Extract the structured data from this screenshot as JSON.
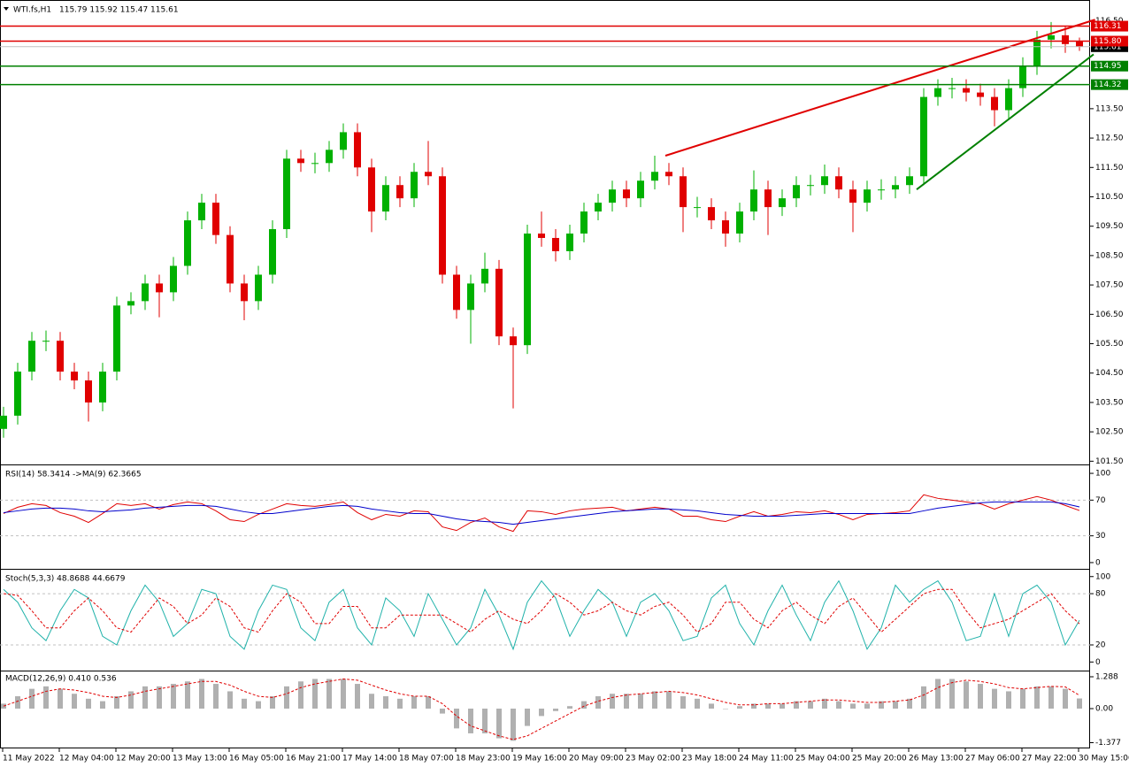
{
  "chart_data": [
    {
      "type": "candlestick",
      "title": "WTI.fs,H1",
      "subtitle": "115.79 115.92 115.47 115.61",
      "categories": [
        "11 May 2022",
        null,
        null,
        null,
        "12 May 04:00",
        null,
        null,
        null,
        "12 May 20:00",
        null,
        null,
        null,
        "13 May 13:00",
        null,
        null,
        null,
        "16 May 05:00",
        null,
        null,
        null,
        "16 May 21:00",
        null,
        null,
        null,
        "17 May 14:00",
        null,
        null,
        null,
        "18 May 07:00",
        null,
        null,
        null,
        "18 May 23:00",
        null,
        null,
        null,
        "19 May 16:00",
        null,
        null,
        null,
        "20 May 09:00",
        null,
        null,
        null,
        "23 May 02:00",
        null,
        null,
        null,
        "23 May 18:00",
        null,
        null,
        null,
        "24 May 11:00",
        null,
        null,
        null,
        "25 May 04:00",
        null,
        null,
        null,
        "25 May 20:00",
        null,
        null,
        null,
        "26 May 13:00",
        null,
        null,
        null,
        "27 May 06:00",
        null,
        null,
        null,
        "27 May 22:00",
        null,
        null,
        null,
        "30 May 15:00"
      ],
      "open": [
        102.6,
        103.05,
        104.55,
        105.6,
        105.6,
        104.55,
        104.25,
        103.5,
        104.55,
        106.8,
        106.95,
        107.55,
        107.25,
        108.15,
        109.7,
        110.3,
        109.2,
        107.55,
        106.95,
        107.85,
        109.4,
        111.8,
        111.65,
        111.65,
        112.1,
        112.7,
        111.5,
        110.0,
        110.9,
        110.45,
        111.35,
        111.2,
        107.85,
        106.65,
        107.55,
        108.05,
        105.75,
        105.45,
        109.25,
        109.1,
        108.65,
        109.25,
        110.0,
        110.3,
        110.75,
        110.45,
        111.05,
        111.35,
        111.2,
        110.15,
        110.15,
        109.7,
        109.25,
        110.0,
        110.75,
        110.15,
        110.45,
        110.9,
        110.9,
        111.2,
        110.75,
        110.3,
        110.75,
        110.75,
        110.9,
        111.2,
        113.9,
        114.2,
        114.2,
        114.05,
        113.9,
        113.45,
        114.2,
        114.95,
        115.85,
        116.0,
        115.79
      ],
      "high": [
        103.35,
        104.85,
        105.9,
        105.95,
        105.9,
        104.85,
        104.55,
        104.85,
        107.1,
        107.25,
        107.85,
        107.85,
        108.45,
        110.0,
        110.6,
        110.6,
        109.5,
        107.85,
        108.15,
        109.7,
        112.1,
        112.1,
        112.0,
        112.4,
        113.0,
        113.0,
        111.8,
        111.2,
        111.2,
        111.65,
        112.4,
        111.5,
        108.15,
        107.85,
        108.6,
        108.35,
        106.05,
        109.55,
        110.0,
        109.4,
        109.55,
        110.3,
        110.6,
        111.05,
        111.05,
        111.35,
        111.9,
        111.65,
        111.5,
        110.5,
        110.45,
        110.0,
        110.3,
        111.4,
        111.05,
        110.75,
        111.2,
        111.25,
        111.6,
        111.5,
        111.05,
        111.05,
        111.1,
        111.2,
        111.5,
        114.2,
        114.5,
        114.55,
        114.5,
        114.35,
        114.2,
        114.5,
        115.25,
        116.15,
        116.45,
        116.3,
        115.92
      ],
      "low": [
        102.3,
        102.75,
        104.25,
        105.25,
        104.25,
        103.95,
        102.85,
        103.2,
        104.25,
        106.5,
        106.65,
        106.4,
        106.95,
        107.85,
        109.4,
        108.9,
        107.25,
        106.3,
        106.65,
        107.55,
        109.1,
        111.35,
        111.3,
        111.35,
        111.8,
        111.2,
        109.3,
        109.7,
        110.15,
        110.15,
        110.9,
        107.55,
        106.35,
        105.5,
        107.25,
        105.45,
        103.3,
        105.15,
        108.8,
        108.3,
        108.35,
        108.95,
        109.7,
        110.0,
        110.15,
        110.15,
        110.75,
        110.9,
        109.3,
        109.8,
        109.4,
        108.8,
        108.95,
        109.7,
        109.2,
        109.85,
        110.15,
        110.55,
        110.6,
        110.45,
        109.3,
        110.0,
        110.4,
        110.45,
        110.6,
        110.9,
        113.6,
        113.85,
        113.75,
        113.6,
        112.9,
        113.15,
        113.9,
        114.65,
        115.55,
        115.4,
        115.47
      ],
      "close": [
        103.05,
        104.55,
        105.6,
        105.6,
        104.55,
        104.25,
        103.5,
        104.55,
        106.8,
        106.95,
        107.55,
        107.25,
        108.15,
        109.7,
        110.3,
        109.2,
        107.55,
        106.95,
        107.85,
        109.4,
        111.8,
        111.65,
        111.65,
        112.1,
        112.7,
        111.5,
        110.0,
        110.9,
        110.45,
        111.35,
        111.2,
        107.85,
        106.65,
        107.55,
        108.05,
        105.75,
        105.45,
        109.25,
        109.1,
        108.65,
        109.25,
        110.0,
        110.3,
        110.75,
        110.45,
        111.05,
        111.35,
        111.2,
        110.15,
        110.15,
        109.7,
        109.25,
        110.0,
        110.75,
        110.15,
        110.45,
        110.9,
        110.9,
        111.2,
        110.75,
        110.3,
        110.75,
        110.75,
        110.9,
        111.2,
        113.9,
        114.2,
        114.2,
        114.05,
        113.9,
        113.45,
        114.2,
        114.95,
        115.85,
        116.0,
        115.7,
        115.61
      ],
      "up_color": "#00b000",
      "down_color": "#e00000",
      "ylim": [
        101.45,
        117.14
      ],
      "yticks": [
        {
          "value": 116.5,
          "label": "116.50"
        },
        {
          "value": 113.5,
          "label": "113.50"
        },
        {
          "value": 112.5,
          "label": "112.50"
        },
        {
          "value": 111.5,
          "label": "111.50"
        },
        {
          "value": 110.5,
          "label": "110.50"
        },
        {
          "value": 109.5,
          "label": "109.50"
        },
        {
          "value": 108.5,
          "label": "108.50"
        },
        {
          "value": 107.5,
          "label": "107.50"
        },
        {
          "value": 106.5,
          "label": "106.50"
        },
        {
          "value": 105.5,
          "label": "105.50"
        },
        {
          "value": 104.5,
          "label": "104.50"
        },
        {
          "value": 103.5,
          "label": "103.50"
        },
        {
          "value": 102.5,
          "label": "102.50"
        },
        {
          "value": 101.5,
          "label": "101.50"
        }
      ],
      "current_price": {
        "value": 115.61,
        "label": "115.61",
        "color": "#000000"
      },
      "levels": [
        {
          "value": 116.31,
          "label": "116.31",
          "color": "#e00000"
        },
        {
          "value": 115.8,
          "label": "115.80",
          "color": "#e00000"
        },
        {
          "value": 114.95,
          "label": "114.95",
          "color": "#008000"
        },
        {
          "value": 114.32,
          "label": "114.32",
          "color": "#008000"
        }
      ],
      "trendlines": [
        {
          "color": "#e00000",
          "x": [
            46.75,
            77.1
          ],
          "y": [
            111.9,
            116.53
          ]
        },
        {
          "color": "#008000",
          "x": [
            64.5,
            77.0
          ],
          "y": [
            110.75,
            115.35
          ]
        }
      ]
    },
    {
      "type": "line",
      "title": "RSI(14) 58.3414 ->MA(9) 62.3665",
      "series": [
        {
          "color": "#e00000",
          "values": [
            55,
            62,
            66,
            64,
            56,
            52,
            45,
            55,
            66,
            64,
            66,
            60,
            65,
            68,
            66,
            58,
            48,
            46,
            54,
            60,
            66,
            64,
            63,
            65,
            68,
            56,
            48,
            54,
            52,
            58,
            57,
            40,
            36,
            45,
            50,
            40,
            35,
            58,
            57,
            54,
            58,
            60,
            61,
            62,
            58,
            60,
            62,
            60,
            52,
            52,
            48,
            46,
            52,
            57,
            52,
            54,
            57,
            56,
            58,
            54,
            48,
            54,
            55,
            56,
            58,
            76,
            72,
            70,
            68,
            66,
            60,
            66,
            70,
            74,
            70,
            64,
            58.3414
          ]
        },
        {
          "color": "#0000cc",
          "values": [
            56,
            58,
            60,
            61,
            61,
            60,
            58,
            57,
            58,
            59,
            61,
            62,
            63,
            64,
            64,
            63,
            60,
            57,
            55,
            55,
            57,
            59,
            61,
            63,
            64,
            63,
            60,
            58,
            56,
            55,
            55,
            52,
            49,
            47,
            46,
            45,
            43,
            45,
            47,
            49,
            51,
            53,
            55,
            57,
            58,
            59,
            60,
            60,
            59,
            58,
            56,
            54,
            53,
            52,
            52,
            52,
            53,
            54,
            55,
            55,
            55,
            55,
            55,
            55,
            55,
            58,
            61,
            63,
            65,
            67,
            68,
            68,
            68,
            68,
            68,
            66,
            62.3665
          ]
        }
      ],
      "ylim": [
        -6,
        107
      ],
      "yticks": [
        0,
        30,
        70,
        100
      ],
      "levels": [
        30,
        70
      ]
    },
    {
      "type": "line",
      "title": "Stoch(5,3,3) 48.8688 44.6679",
      "series": [
        {
          "color": "#20b2aa",
          "values": [
            85,
            70,
            40,
            25,
            60,
            85,
            75,
            30,
            20,
            60,
            90,
            70,
            30,
            45,
            85,
            80,
            30,
            15,
            60,
            90,
            85,
            40,
            25,
            70,
            85,
            40,
            20,
            75,
            60,
            30,
            80,
            50,
            20,
            40,
            85,
            55,
            15,
            70,
            95,
            75,
            30,
            60,
            85,
            70,
            30,
            70,
            80,
            60,
            25,
            30,
            75,
            90,
            45,
            20,
            60,
            90,
            55,
            25,
            70,
            95,
            60,
            15,
            40,
            90,
            70,
            85,
            95,
            70,
            25,
            30,
            80,
            30,
            80,
            90,
            70,
            20,
            48.8688
          ]
        },
        {
          "color": "#e00000",
          "dashed": true,
          "values": [
            80,
            78,
            60,
            40,
            40,
            60,
            75,
            60,
            40,
            35,
            55,
            75,
            65,
            45,
            55,
            75,
            65,
            40,
            35,
            60,
            80,
            70,
            45,
            45,
            65,
            65,
            40,
            40,
            55,
            55,
            55,
            55,
            45,
            35,
            50,
            60,
            50,
            45,
            60,
            80,
            70,
            55,
            60,
            70,
            60,
            55,
            65,
            70,
            55,
            35,
            45,
            70,
            70,
            50,
            40,
            60,
            70,
            55,
            45,
            65,
            75,
            55,
            35,
            50,
            65,
            80,
            85,
            85,
            60,
            40,
            45,
            50,
            60,
            70,
            80,
            60,
            44.6679
          ]
        }
      ],
      "ylim": [
        -9,
        107
      ],
      "yticks": [
        0,
        20,
        80,
        100
      ],
      "levels": [
        20,
        80
      ]
    },
    {
      "type": "bar",
      "title": "MACD(12,26,9) 0.410 0.536",
      "series": [
        {
          "type": "bar",
          "color": "#b0b0b0",
          "values": [
            0.2,
            0.5,
            0.8,
            0.9,
            0.8,
            0.6,
            0.4,
            0.3,
            0.5,
            0.7,
            0.9,
            0.9,
            1.0,
            1.1,
            1.2,
            1.0,
            0.7,
            0.4,
            0.3,
            0.5,
            0.9,
            1.1,
            1.2,
            1.2,
            1.2,
            1.0,
            0.6,
            0.5,
            0.4,
            0.5,
            0.5,
            -0.2,
            -0.8,
            -1.0,
            -1.0,
            -1.2,
            -1.3,
            -0.7,
            -0.3,
            -0.1,
            0.1,
            0.3,
            0.5,
            0.6,
            0.6,
            0.6,
            0.7,
            0.7,
            0.5,
            0.4,
            0.2,
            0.0,
            0.1,
            0.2,
            0.2,
            0.2,
            0.3,
            0.3,
            0.4,
            0.3,
            0.2,
            0.2,
            0.3,
            0.3,
            0.4,
            0.9,
            1.2,
            1.2,
            1.1,
            1.0,
            0.8,
            0.7,
            0.8,
            0.9,
            0.9,
            0.8,
            0.41
          ]
        },
        {
          "type": "line",
          "color": "#e00000",
          "dashed": true,
          "values": [
            0.1,
            0.3,
            0.5,
            0.7,
            0.8,
            0.75,
            0.65,
            0.5,
            0.45,
            0.55,
            0.7,
            0.8,
            0.9,
            1.0,
            1.1,
            1.1,
            0.95,
            0.7,
            0.5,
            0.45,
            0.6,
            0.85,
            1.0,
            1.1,
            1.2,
            1.15,
            0.95,
            0.75,
            0.6,
            0.5,
            0.5,
            0.2,
            -0.3,
            -0.7,
            -0.9,
            -1.1,
            -1.25,
            -1.1,
            -0.8,
            -0.5,
            -0.2,
            0.1,
            0.3,
            0.45,
            0.55,
            0.6,
            0.65,
            0.7,
            0.65,
            0.55,
            0.4,
            0.25,
            0.15,
            0.15,
            0.2,
            0.2,
            0.25,
            0.3,
            0.35,
            0.35,
            0.3,
            0.25,
            0.25,
            0.3,
            0.35,
            0.55,
            0.85,
            1.05,
            1.15,
            1.1,
            1.0,
            0.85,
            0.8,
            0.85,
            0.9,
            0.88,
            0.536
          ]
        }
      ],
      "ylim": [
        -1.574,
        1.467
      ],
      "yticks": [
        1.288,
        {
          "value": 0,
          "label": "0.00"
        },
        -1.377
      ]
    }
  ]
}
